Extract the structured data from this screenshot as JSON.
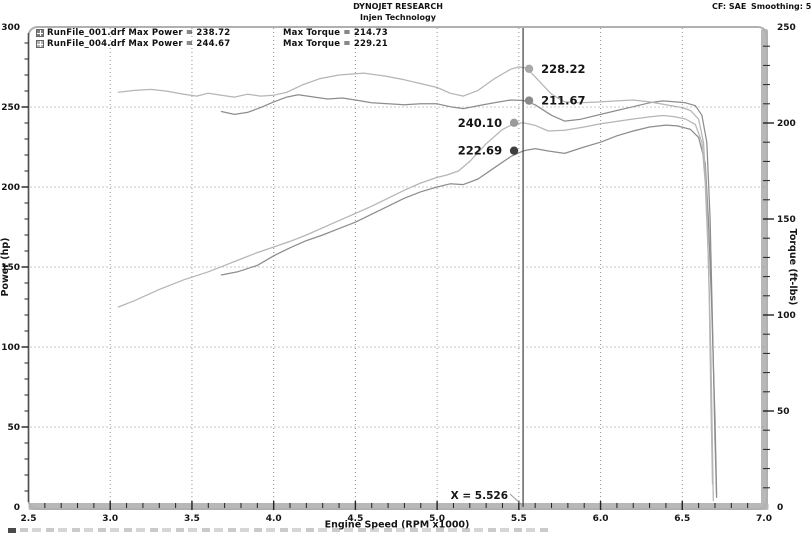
{
  "header": {
    "center_line1": "DYNOJET RESEARCH",
    "center_line2": "Injen Technology",
    "cf_label": "CF: SAE",
    "smoothing_label": "Smoothing: 5"
  },
  "legend": {
    "rows": [
      {
        "swatch_color": "#7d7d7d",
        "label": "RunFile_001.drf Max Power = 238.72",
        "torque_label": "Max Torque = 214.73"
      },
      {
        "swatch_color": "#b2b2b2",
        "label": "RunFile_004.drf Max Power = 244.67",
        "torque_label": "Max Torque = 229.21"
      }
    ]
  },
  "chart_data": {
    "type": "line",
    "title": "",
    "x_axis": {
      "label": "Engine Speed (RPM x1000)",
      "range": [
        2.5,
        7.0
      ],
      "tick_labels": [
        "2.5",
        "3.0",
        "3.5",
        "4.0",
        "4.5",
        "5.0",
        "5.5",
        "6.0",
        "6.5",
        "7.0"
      ],
      "minor_tick_step": 0.1
    },
    "y_left": {
      "label": "Power (hp)",
      "range": [
        0,
        300
      ],
      "ticks": [
        0,
        50,
        100,
        150,
        200,
        250,
        300
      ],
      "minor_tick_step": 10
    },
    "y_right": {
      "label": "Torque (ft-lbs)",
      "range": [
        0,
        250
      ],
      "ticks": [
        0,
        50,
        100,
        150,
        200,
        250
      ],
      "minor_tick_step": 10
    },
    "grid": {
      "color": "#909090",
      "style": "dotted",
      "vertical_at": [
        3.0,
        3.5,
        4.0,
        4.5,
        5.0,
        5.5,
        6.0,
        6.5
      ],
      "horizontal_at_hp": [
        50,
        100,
        150,
        200,
        250
      ]
    },
    "series": [
      {
        "name": "RunFile_001.drf Power",
        "run": "RunFile_001.drf",
        "quantity": "power",
        "axis": "left",
        "color": "#8d8d8d",
        "max": 238.72,
        "points": [
          [
            3.68,
            145
          ],
          [
            3.78,
            147
          ],
          [
            3.9,
            151
          ],
          [
            4.0,
            157
          ],
          [
            4.1,
            162
          ],
          [
            4.2,
            166.5
          ],
          [
            4.3,
            170
          ],
          [
            4.4,
            174
          ],
          [
            4.5,
            178
          ],
          [
            4.6,
            183
          ],
          [
            4.7,
            188
          ],
          [
            4.8,
            193
          ],
          [
            4.9,
            197
          ],
          [
            5.0,
            200
          ],
          [
            5.08,
            202
          ],
          [
            5.16,
            201.5
          ],
          [
            5.25,
            205
          ],
          [
            5.35,
            212
          ],
          [
            5.45,
            219
          ],
          [
            5.53,
            222.7
          ],
          [
            5.6,
            224
          ],
          [
            5.68,
            222.5
          ],
          [
            5.78,
            221
          ],
          [
            5.9,
            225
          ],
          [
            6.0,
            228
          ],
          [
            6.1,
            232
          ],
          [
            6.2,
            235
          ],
          [
            6.3,
            237.5
          ],
          [
            6.4,
            238.7
          ],
          [
            6.47,
            238.2
          ],
          [
            6.55,
            236
          ],
          [
            6.6,
            231
          ],
          [
            6.64,
            215
          ],
          [
            6.66,
            180
          ],
          [
            6.68,
            125
          ],
          [
            6.7,
            55
          ],
          [
            6.71,
            8
          ]
        ]
      },
      {
        "name": "RunFile_004.drf Power",
        "run": "RunFile_004.drf",
        "quantity": "power",
        "axis": "left",
        "color": "#b5b5b5",
        "max": 244.67,
        "points": [
          [
            3.05,
            125
          ],
          [
            3.15,
            129
          ],
          [
            3.3,
            136
          ],
          [
            3.45,
            142
          ],
          [
            3.6,
            147
          ],
          [
            3.7,
            151
          ],
          [
            3.8,
            155
          ],
          [
            3.9,
            159
          ],
          [
            4.0,
            162.5
          ],
          [
            4.1,
            166
          ],
          [
            4.2,
            170
          ],
          [
            4.3,
            174.5
          ],
          [
            4.4,
            179
          ],
          [
            4.5,
            183.5
          ],
          [
            4.6,
            188
          ],
          [
            4.7,
            193
          ],
          [
            4.8,
            198
          ],
          [
            4.9,
            202.5
          ],
          [
            5.0,
            206
          ],
          [
            5.06,
            207.5
          ],
          [
            5.13,
            210
          ],
          [
            5.2,
            216
          ],
          [
            5.3,
            227
          ],
          [
            5.4,
            236
          ],
          [
            5.47,
            239.5
          ],
          [
            5.53,
            240.1
          ],
          [
            5.6,
            238.5
          ],
          [
            5.68,
            235
          ],
          [
            5.78,
            235.5
          ],
          [
            5.9,
            237.5
          ],
          [
            6.0,
            239.5
          ],
          [
            6.1,
            241
          ],
          [
            6.2,
            242.5
          ],
          [
            6.3,
            243.8
          ],
          [
            6.38,
            244.7
          ],
          [
            6.45,
            244
          ],
          [
            6.52,
            242.5
          ],
          [
            6.58,
            239
          ],
          [
            6.62,
            228
          ],
          [
            6.64,
            203
          ],
          [
            6.66,
            155
          ],
          [
            6.675,
            95
          ],
          [
            6.685,
            35
          ],
          [
            6.69,
            4
          ]
        ]
      },
      {
        "name": "RunFile_001.drf Torque",
        "run": "RunFile_001.drf",
        "quantity": "torque",
        "axis": "right",
        "color": "#8d8d8d",
        "max": 214.73,
        "points": [
          [
            3.68,
            206
          ],
          [
            3.76,
            204.5
          ],
          [
            3.84,
            205.5
          ],
          [
            3.92,
            208
          ],
          [
            4.0,
            211
          ],
          [
            4.08,
            213.5
          ],
          [
            4.15,
            214.7
          ],
          [
            4.25,
            213.5
          ],
          [
            4.33,
            212.5
          ],
          [
            4.42,
            213
          ],
          [
            4.5,
            212
          ],
          [
            4.6,
            210.5
          ],
          [
            4.7,
            210
          ],
          [
            4.8,
            209.5
          ],
          [
            4.9,
            210
          ],
          [
            5.0,
            210
          ],
          [
            5.08,
            208.5
          ],
          [
            5.16,
            207.5
          ],
          [
            5.25,
            209
          ],
          [
            5.35,
            210.5
          ],
          [
            5.45,
            212
          ],
          [
            5.53,
            211.7
          ],
          [
            5.6,
            209.5
          ],
          [
            5.7,
            204
          ],
          [
            5.78,
            201
          ],
          [
            5.88,
            202
          ],
          [
            6.0,
            204.5
          ],
          [
            6.1,
            206.5
          ],
          [
            6.2,
            208.5
          ],
          [
            6.3,
            210.5
          ],
          [
            6.38,
            211.5
          ],
          [
            6.46,
            211
          ],
          [
            6.52,
            210.5
          ],
          [
            6.58,
            209
          ],
          [
            6.62,
            204
          ],
          [
            6.65,
            190
          ],
          [
            6.67,
            150
          ],
          [
            6.685,
            95
          ],
          [
            6.7,
            35
          ],
          [
            6.71,
            5
          ]
        ]
      },
      {
        "name": "RunFile_004.drf Torque",
        "run": "RunFile_004.drf",
        "quantity": "torque",
        "axis": "right",
        "color": "#b5b5b5",
        "max": 229.21,
        "points": [
          [
            3.05,
            216
          ],
          [
            3.15,
            217
          ],
          [
            3.25,
            217.5
          ],
          [
            3.35,
            216.5
          ],
          [
            3.45,
            215
          ],
          [
            3.53,
            214
          ],
          [
            3.6,
            215.5
          ],
          [
            3.68,
            214.5
          ],
          [
            3.76,
            213.5
          ],
          [
            3.84,
            215
          ],
          [
            3.92,
            214
          ],
          [
            4.0,
            214.5
          ],
          [
            4.08,
            216
          ],
          [
            4.18,
            220
          ],
          [
            4.28,
            223
          ],
          [
            4.4,
            225
          ],
          [
            4.55,
            226
          ],
          [
            4.68,
            224.5
          ],
          [
            4.8,
            222.5
          ],
          [
            4.9,
            220.5
          ],
          [
            5.0,
            218.5
          ],
          [
            5.08,
            215.5
          ],
          [
            5.16,
            214
          ],
          [
            5.25,
            217
          ],
          [
            5.35,
            223
          ],
          [
            5.45,
            228
          ],
          [
            5.5,
            229.2
          ],
          [
            5.55,
            228.5
          ],
          [
            5.6,
            224
          ],
          [
            5.7,
            215
          ],
          [
            5.78,
            211
          ],
          [
            5.88,
            210.5
          ],
          [
            6.0,
            211
          ],
          [
            6.1,
            211.5
          ],
          [
            6.2,
            212
          ],
          [
            6.3,
            211
          ],
          [
            6.4,
            209.5
          ],
          [
            6.5,
            208
          ],
          [
            6.55,
            206.5
          ],
          [
            6.6,
            202
          ],
          [
            6.63,
            190
          ],
          [
            6.65,
            158
          ],
          [
            6.665,
            110
          ],
          [
            6.675,
            55
          ],
          [
            6.685,
            12
          ]
        ]
      }
    ],
    "cursor": {
      "label": "X = 5.526",
      "rpm": 5.526,
      "color": "#3c3c3c"
    },
    "markers": [
      {
        "series": 3,
        "value": "228.22",
        "side": "right",
        "dot_color": "#a8a8a8"
      },
      {
        "series": 2,
        "value": "211.67",
        "side": "right",
        "dot_color": "#8a8a8a"
      },
      {
        "series": 1,
        "value": "240.10",
        "side": "left",
        "dot_color": "#9a9a9a"
      },
      {
        "series": 0,
        "value": "222.69",
        "side": "left",
        "dot_color": "#3f3f3f"
      }
    ]
  },
  "frame": {
    "border_color": "#b0b0b0",
    "bar_color": "#b8b8b8",
    "left_axis_color": "#4f4f4f",
    "tick_color": "#222222"
  }
}
